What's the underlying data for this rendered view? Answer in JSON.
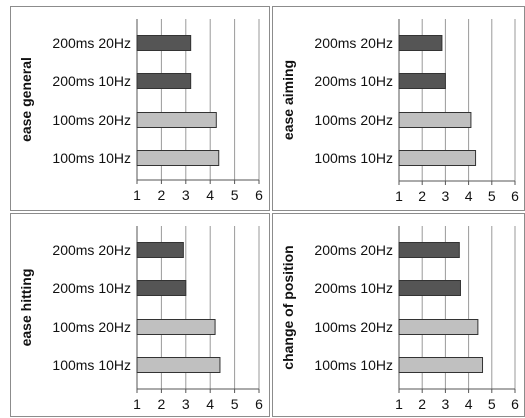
{
  "chart_data": [
    {
      "type": "bar",
      "orientation": "horizontal",
      "ylabel": "ease general",
      "categories": [
        "200ms 20Hz",
        "200ms 10Hz",
        "100ms 20Hz",
        "100ms 10Hz"
      ],
      "values": [
        3.2,
        3.2,
        4.25,
        4.35
      ],
      "bar_colors": [
        "#555555",
        "#555555",
        "#c0c0c0",
        "#c0c0c0"
      ],
      "xlim": [
        1,
        6
      ],
      "xticks": [
        "1",
        "2",
        "3",
        "4",
        "5",
        "6"
      ],
      "grid": true
    },
    {
      "type": "bar",
      "orientation": "horizontal",
      "ylabel": "ease aiming",
      "categories": [
        "200ms 20Hz",
        "200ms 10Hz",
        "100ms 20Hz",
        "100ms 10Hz"
      ],
      "values": [
        2.85,
        3.0,
        4.1,
        4.3
      ],
      "bar_colors": [
        "#555555",
        "#555555",
        "#c0c0c0",
        "#c0c0c0"
      ],
      "xlim": [
        1,
        6
      ],
      "xticks": [
        "1",
        "2",
        "3",
        "4",
        "5",
        "6"
      ],
      "grid": true
    },
    {
      "type": "bar",
      "orientation": "horizontal",
      "ylabel": "ease hitting",
      "categories": [
        "200ms 20Hz",
        "200ms 10Hz",
        "100ms 20Hz",
        "100ms 10Hz"
      ],
      "values": [
        2.9,
        3.0,
        4.2,
        4.4
      ],
      "bar_colors": [
        "#555555",
        "#555555",
        "#c0c0c0",
        "#c0c0c0"
      ],
      "xlim": [
        1,
        6
      ],
      "xticks": [
        "1",
        "2",
        "3",
        "4",
        "5",
        "6"
      ],
      "grid": true
    },
    {
      "type": "bar",
      "orientation": "horizontal",
      "ylabel": "change of position",
      "categories": [
        "200ms 20Hz",
        "200ms 10Hz",
        "100ms 20Hz",
        "100ms 10Hz"
      ],
      "values": [
        3.6,
        3.65,
        4.4,
        4.6
      ],
      "bar_colors": [
        "#555555",
        "#555555",
        "#c0c0c0",
        "#c0c0c0"
      ],
      "xlim": [
        1,
        6
      ],
      "xticks": [
        "1",
        "2",
        "3",
        "4",
        "5",
        "6"
      ],
      "grid": true
    }
  ]
}
